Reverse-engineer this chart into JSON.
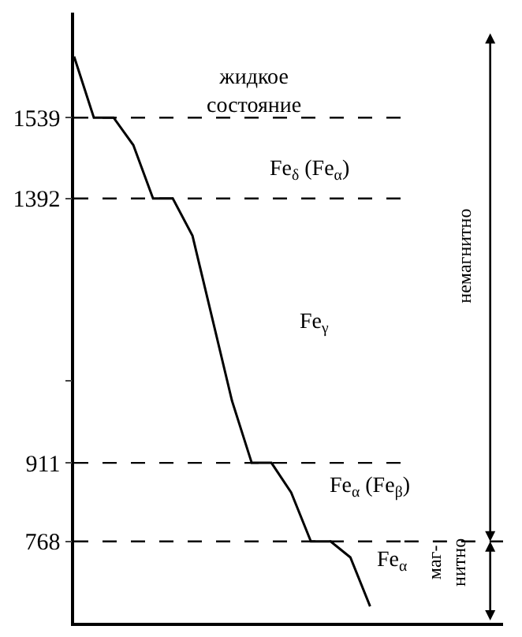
{
  "chart_data": {
    "type": "line",
    "categories": [
      null,
      null,
      null,
      null,
      null,
      null,
      null,
      null,
      null,
      null,
      null,
      null,
      null,
      null,
      null,
      null
    ],
    "values": [
      1650,
      1539,
      1539,
      1489,
      1392,
      1392,
      1324,
      1174,
      1024,
      911,
      911,
      857,
      768,
      768,
      739,
      650
    ],
    "color": "#000000",
    "ylim": [
      620,
      1730
    ],
    "yticks": [
      768,
      911,
      {
        "value": 1060,
        "label": null
      },
      1392,
      1539
    ],
    "tick_labels": "y",
    "legend": false,
    "marker": "none",
    "line_style": "solid",
    "ref_lines": [
      {
        "axis": "y",
        "value": 1539,
        "line_style": "dashed",
        "color": "#000000"
      },
      {
        "axis": "y",
        "value": 1392,
        "line_style": "dashed",
        "color": "#000000"
      },
      {
        "axis": "y",
        "value": 911,
        "line_style": "dashed",
        "color": "#000000"
      },
      {
        "axis": "y",
        "value": 768,
        "line_style": "dashed",
        "color": "#000000"
      }
    ],
    "annotations": [
      "жидкое\nсостояние",
      "Fe$_{δ}$ (Fe$_{α}$)",
      "Fe$_{γ}$",
      "Fe$_{α}$ (Fe$_{β}$)",
      "Fe$_{α}$",
      "немагнитно",
      "маг-\nнитно"
    ]
  }
}
